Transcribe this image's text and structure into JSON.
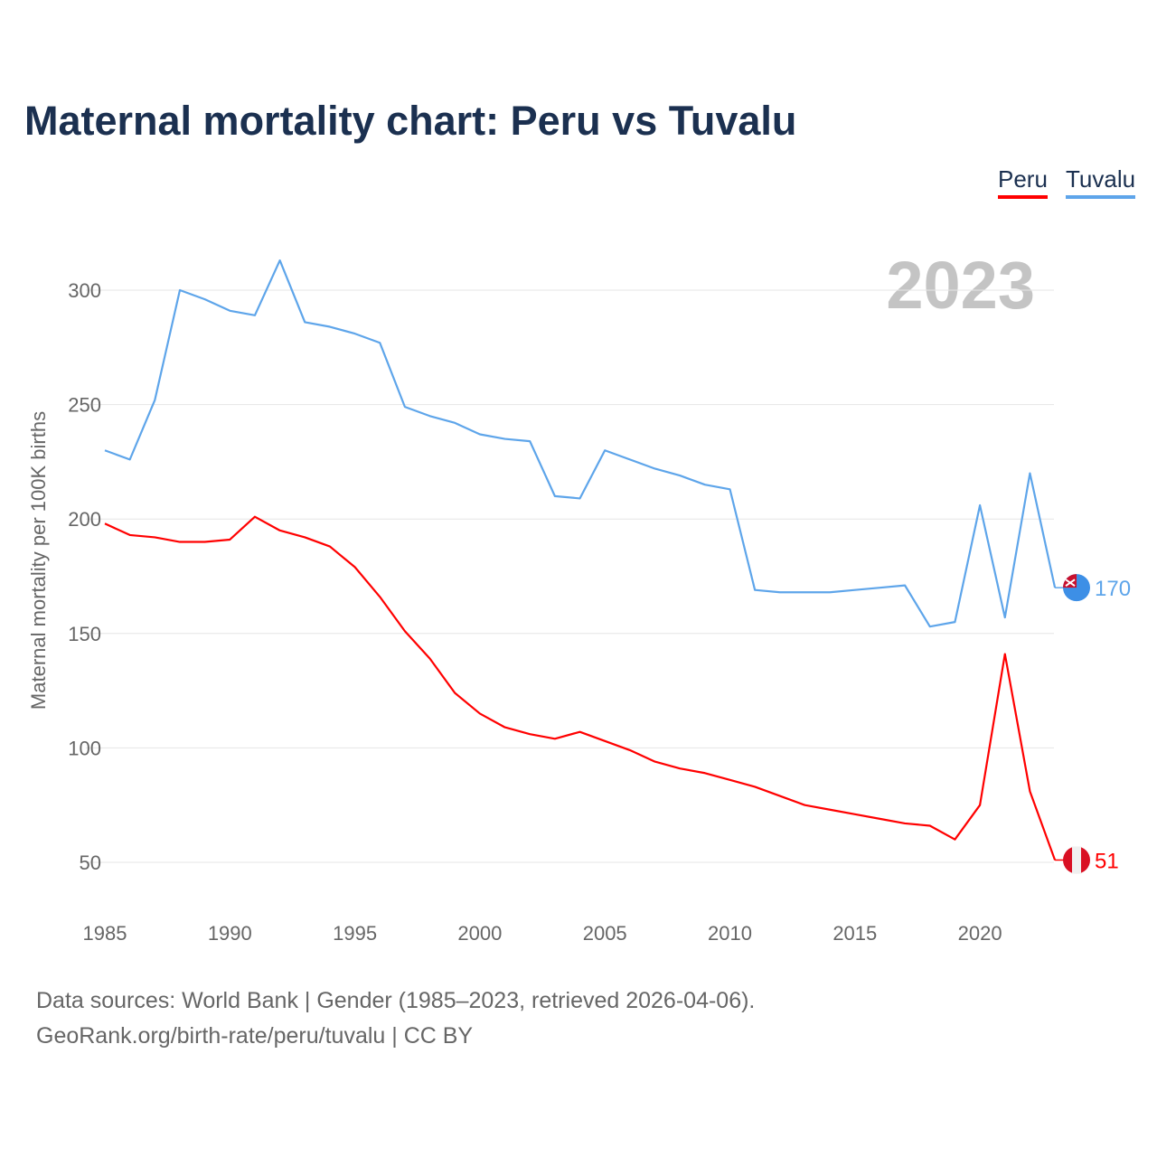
{
  "chart_data": {
    "type": "line",
    "title": "Maternal mortality chart: Peru vs Tuvalu",
    "ylabel": "Maternal mortality per 100K births",
    "xlabel": "",
    "year_label": "2023",
    "x": [
      1985,
      1986,
      1987,
      1988,
      1989,
      1990,
      1991,
      1992,
      1993,
      1994,
      1995,
      1996,
      1997,
      1998,
      1999,
      2000,
      2001,
      2002,
      2003,
      2004,
      2005,
      2006,
      2007,
      2008,
      2009,
      2010,
      2011,
      2012,
      2013,
      2014,
      2015,
      2016,
      2017,
      2018,
      2019,
      2020,
      2021,
      2022,
      2023
    ],
    "xlim": [
      1985,
      2023
    ],
    "ylim": [
      50,
      300
    ],
    "xticks": [
      "1985",
      "1990",
      "1995",
      "2000",
      "2005",
      "2010",
      "2015",
      "2020"
    ],
    "yticks": [
      "50",
      "100",
      "150",
      "200",
      "250",
      "300"
    ],
    "grid": true,
    "legend_position": "top-right",
    "series": [
      {
        "name": "Peru",
        "color": "#ff0000",
        "end_label": "51",
        "flag": "peru-flag",
        "values": [
          198,
          193,
          192,
          190,
          190,
          191,
          201,
          195,
          192,
          188,
          179,
          166,
          151,
          139,
          124,
          115,
          109,
          106,
          104,
          107,
          103,
          99,
          94,
          91,
          89,
          86,
          83,
          79,
          75,
          73,
          71,
          69,
          67,
          66,
          60,
          75,
          141,
          81,
          51
        ]
      },
      {
        "name": "Tuvalu",
        "color": "#5ea5ea",
        "end_label": "170",
        "flag": "tuvalu-flag",
        "values": [
          230,
          226,
          252,
          300,
          296,
          291,
          289,
          313,
          286,
          284,
          281,
          277,
          249,
          245,
          242,
          237,
          235,
          234,
          210,
          209,
          230,
          226,
          222,
          219,
          215,
          213,
          169,
          168,
          168,
          168,
          169,
          170,
          171,
          153,
          155,
          206,
          157,
          220,
          170
        ]
      }
    ]
  },
  "source": {
    "line1": "Data sources: World Bank | Gender (1985–2023, retrieved 2026-04-06).",
    "line2": "GeoRank.org/birth-rate/peru/tuvalu | CC BY"
  }
}
